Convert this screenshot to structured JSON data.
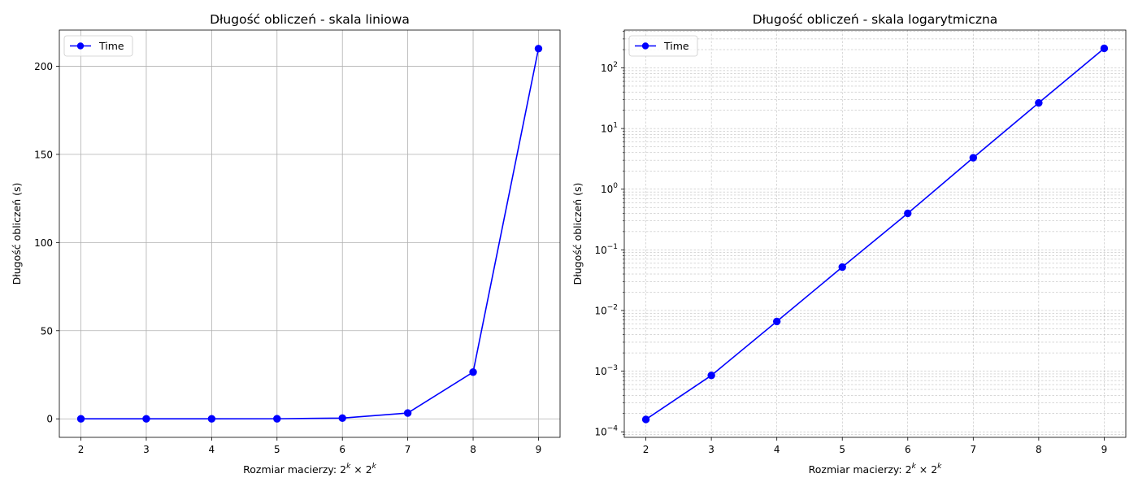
{
  "chart_data": [
    {
      "type": "line",
      "title": "Długość obliczeń - skala liniowa",
      "xlabel_prefix": "Rozmiar macierzy: ",
      "xlabel_math": {
        "base": "2",
        "exp": "k",
        "times": " × "
      },
      "ylabel": "Długość obliczeń (s)",
      "y_scale": "linear",
      "xlim": [
        1.67,
        9.33
      ],
      "ylim": [
        -10.5,
        220.5
      ],
      "x_ticks": [
        2,
        3,
        4,
        5,
        6,
        7,
        8,
        9
      ],
      "x_tick_labels": [
        "2",
        "3",
        "4",
        "5",
        "6",
        "7",
        "8",
        "9"
      ],
      "y_ticks": [
        0,
        50,
        100,
        150,
        200
      ],
      "y_tick_labels": [
        "0",
        "50",
        "100",
        "150",
        "200"
      ],
      "grid": "major, solid",
      "legend_position": "upper left",
      "series": [
        {
          "name": "Time",
          "color": "#0000ff",
          "marker": "circle",
          "x": [
            2,
            3,
            4,
            5,
            6,
            7,
            8,
            9
          ],
          "y": [
            0.00016,
            0.00085,
            0.0066,
            0.052,
            0.4,
            3.3,
            26.5,
            210
          ]
        }
      ]
    },
    {
      "type": "line",
      "title": "Długość obliczeń - skala logarytmiczna",
      "xlabel_prefix": "Rozmiar macierzy: ",
      "xlabel_math": {
        "base": "2",
        "exp": "k",
        "times": " × "
      },
      "ylabel": "Długość obliczeń (s)",
      "y_scale": "log",
      "xlim": [
        1.67,
        9.33
      ],
      "ylim": [
        8.1e-05,
        420
      ],
      "x_ticks": [
        2,
        3,
        4,
        5,
        6,
        7,
        8,
        9
      ],
      "x_tick_labels": [
        "2",
        "3",
        "4",
        "5",
        "6",
        "7",
        "8",
        "9"
      ],
      "y_ticks": [
        0.0001,
        0.001,
        0.01,
        0.1,
        1,
        10,
        100
      ],
      "y_tick_labels": [
        {
          "base": "10",
          "exp": "−4"
        },
        {
          "base": "10",
          "exp": "−3"
        },
        {
          "base": "10",
          "exp": "−2"
        },
        {
          "base": "10",
          "exp": "−1"
        },
        {
          "base": "10",
          "exp": "0"
        },
        {
          "base": "10",
          "exp": "1"
        },
        {
          "base": "10",
          "exp": "2"
        }
      ],
      "grid": "major and minor, dashed",
      "legend_position": "upper left",
      "series": [
        {
          "name": "Time",
          "color": "#0000ff",
          "marker": "circle",
          "x": [
            2,
            3,
            4,
            5,
            6,
            7,
            8,
            9
          ],
          "y": [
            0.00016,
            0.00085,
            0.0066,
            0.052,
            0.4,
            3.3,
            26.5,
            210
          ]
        }
      ]
    }
  ]
}
